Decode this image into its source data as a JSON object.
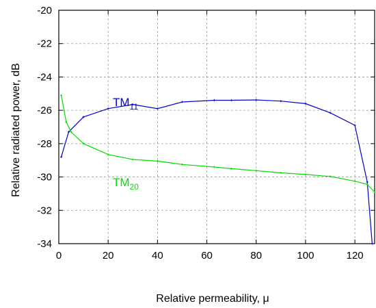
{
  "chart_data": {
    "type": "line",
    "xlabel": "Relative permeability, μ",
    "ylabel": "Relative radiated power, dB",
    "xlim": [
      0,
      128
    ],
    "ylim": [
      -34,
      -20
    ],
    "xticks": [
      0,
      20,
      40,
      60,
      80,
      100,
      120
    ],
    "yticks": [
      -34,
      -32,
      -30,
      -28,
      -26,
      -24,
      -22,
      -20
    ],
    "grid": true,
    "series": [
      {
        "name": "TM11",
        "label_main": "TM",
        "label_sub": "11",
        "color": "#0000cc",
        "x": [
          1,
          4,
          10,
          20,
          30,
          40,
          50,
          63,
          70,
          80,
          90,
          100,
          110,
          120,
          125,
          127
        ],
        "y": [
          -28.8,
          -27.3,
          -26.4,
          -25.9,
          -25.65,
          -25.9,
          -25.5,
          -25.4,
          -25.4,
          -25.38,
          -25.45,
          -25.6,
          -26.15,
          -26.9,
          -30.3,
          -34.0
        ]
      },
      {
        "name": "TM20",
        "label_main": "TM",
        "label_sub": "20",
        "color": "#00dd00",
        "x": [
          1,
          3,
          5,
          10,
          20,
          30,
          40,
          50,
          63,
          70,
          80,
          90,
          100,
          110,
          120,
          125,
          128
        ],
        "y": [
          -25.1,
          -26.7,
          -27.3,
          -28.0,
          -28.65,
          -28.95,
          -29.05,
          -29.25,
          -29.4,
          -29.5,
          -29.62,
          -29.75,
          -29.85,
          -29.97,
          -30.25,
          -30.45,
          -30.9
        ]
      }
    ]
  }
}
